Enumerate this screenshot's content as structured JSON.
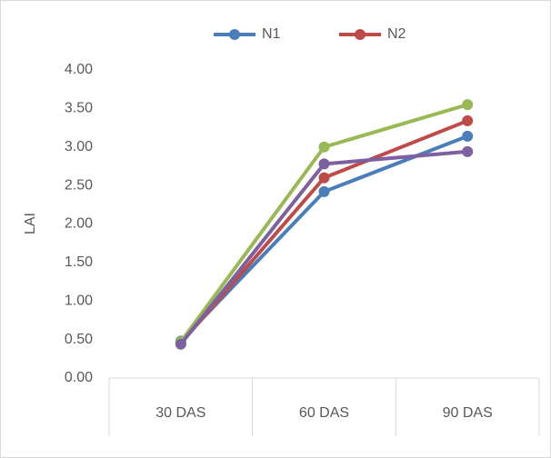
{
  "chart_data": {
    "type": "line",
    "y_label": "LAI",
    "categories": [
      "30 DAS",
      "60 DAS",
      "90 DAS"
    ],
    "series": [
      {
        "name": "N1",
        "color": "#4a7ebb",
        "values": [
          0.48,
          2.42,
          3.14
        ]
      },
      {
        "name": "N2",
        "color": "#be4b48",
        "values": [
          0.45,
          2.6,
          3.34
        ]
      },
      {
        "color": "#98b954",
        "values": [
          0.47,
          3.0,
          3.55
        ]
      },
      {
        "color": "#7d60a0",
        "values": [
          0.44,
          2.78,
          2.94
        ]
      }
    ],
    "ylim": [
      0,
      4
    ],
    "yticks": [
      {
        "value": 0,
        "label": "0.00"
      },
      {
        "value": 0.5,
        "label": "0.50"
      },
      {
        "value": 1,
        "label": "1.00"
      },
      {
        "value": 1.5,
        "label": "1.50"
      },
      {
        "value": 2,
        "label": "2.00"
      },
      {
        "value": 2.5,
        "label": "2.50"
      },
      {
        "value": 3,
        "label": "3.00"
      },
      {
        "value": 3.5,
        "label": "3.50"
      },
      {
        "value": 4,
        "label": "4.00"
      }
    ],
    "grid": false,
    "legend": "top"
  }
}
